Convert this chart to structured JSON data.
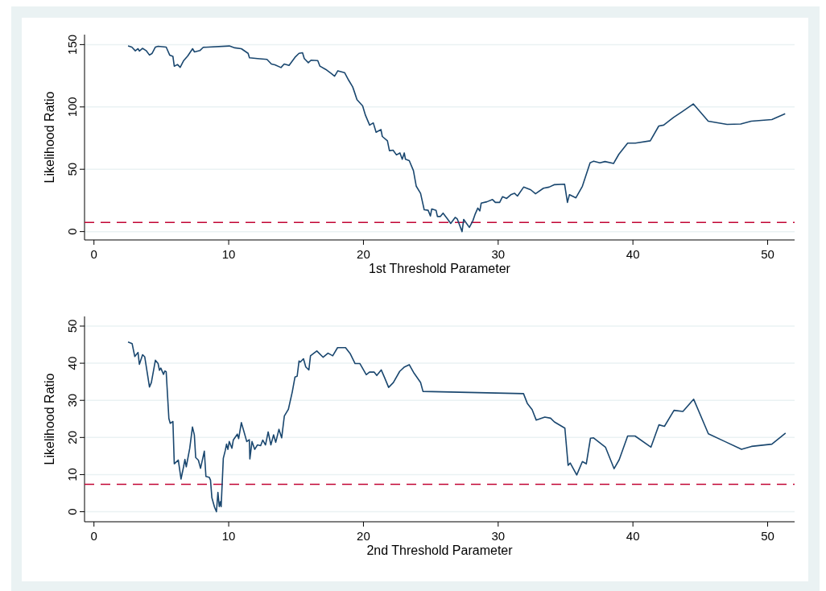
{
  "chart_data": [
    {
      "type": "line",
      "xlabel": "1st Threshold Parameter",
      "ylabel": "Likelihood Ratio",
      "xlim": [
        -0.7,
        52
      ],
      "ylim": [
        -6.7,
        158
      ],
      "xticks": [
        0,
        10,
        20,
        30,
        40,
        50
      ],
      "yticks": [
        0,
        50,
        100,
        150
      ],
      "grid": "y",
      "series": [
        {
          "color": "#1a476f",
          "x": [
            2.53,
            2.81,
            3.07,
            3.27,
            3.37,
            3.6,
            3.87,
            4.12,
            4.32,
            4.56,
            4.76,
            5.36,
            5.62,
            5.86,
            5.96,
            6.2,
            6.4,
            6.66,
            6.96,
            7.32,
            7.46,
            7.86,
            8.11,
            10.05,
            10.45,
            10.94,
            11.44,
            11.54,
            12.14,
            12.84,
            13.17,
            13.43,
            13.88,
            14.12,
            14.48,
            14.92,
            15.22,
            15.48,
            15.61,
            15.91,
            16.11,
            16.61,
            16.77,
            17.2,
            17.6,
            17.86,
            18.1,
            18.6,
            18.9,
            19.2,
            19.31,
            19.52,
            19.94,
            20.15,
            20.46,
            20.73,
            20.94,
            21.3,
            21.4,
            21.78,
            21.93,
            22.2,
            22.45,
            22.71,
            22.88,
            23.03,
            23.12,
            23.4,
            23.71,
            23.92,
            24.24,
            24.51,
            24.8,
            24.97,
            25.07,
            25.39,
            25.49,
            25.7,
            25.91,
            26.23,
            26.48,
            26.81,
            26.96,
            27.32,
            27.44,
            27.86,
            28.11,
            28.28,
            28.49,
            28.64,
            28.74,
            29.16,
            29.58,
            29.79,
            30.11,
            30.32,
            30.63,
            30.94,
            31.22,
            31.43,
            31.89,
            32.42,
            32.77,
            33.36,
            33.78,
            34.15,
            34.93,
            35.14,
            35.29,
            35.77,
            36.25,
            36.82,
            37.09,
            37.55,
            37.93,
            38.56,
            38.96,
            39.61,
            40.18,
            41.29,
            41.92,
            42.28,
            43.01,
            43.64,
            44.48,
            45.59,
            46.99,
            48,
            48.78,
            50.31,
            51.3
          ],
          "values": [
            149,
            148,
            145,
            146.7,
            144.8,
            147,
            145.2,
            141.6,
            143,
            148,
            148.6,
            148,
            141.6,
            140.5,
            132.7,
            134,
            131.8,
            137.2,
            140.9,
            146.7,
            144.1,
            145.2,
            147.8,
            148.9,
            147.4,
            146.7,
            143,
            139.4,
            138.8,
            138.1,
            134.4,
            133.8,
            131.6,
            134.4,
            133.3,
            139.8,
            143,
            143.5,
            138.8,
            135.5,
            137.5,
            137.2,
            132.7,
            130.1,
            126.9,
            124.7,
            129,
            127.5,
            121.5,
            116.1,
            112.7,
            105.9,
            100.8,
            93.3,
            85.4,
            87.2,
            79.7,
            81.9,
            76.3,
            72.8,
            64.9,
            65.3,
            61.5,
            63.1,
            58,
            63.1,
            58,
            56.9,
            48.9,
            36.4,
            30.7,
            17.5,
            17.1,
            12.5,
            18.2,
            17.1,
            12.1,
            12.1,
            14.8,
            10.2,
            6.6,
            11.4,
            10.2,
            0,
            9.8,
            3.4,
            8.4,
            13.7,
            18.9,
            16.6,
            22.8,
            23.9,
            25.7,
            23.4,
            23.4,
            28,
            26.6,
            29.6,
            30.7,
            28.5,
            35.7,
            33.5,
            30.3,
            34.8,
            35.7,
            37.6,
            38,
            23.4,
            29.6,
            27.1,
            36.4,
            55.1,
            56.5,
            55.1,
            56.2,
            54.6,
            62.1,
            71,
            71,
            72.8,
            84.7,
            85.4,
            91.5,
            96.1,
            102.4,
            88.6,
            86,
            86.3,
            88.6,
            89.9,
            94.5
          ]
        }
      ],
      "ref_lines": [
        {
          "axis": "y",
          "value": 7.4,
          "color": "#c10534",
          "line_style": "dashed"
        }
      ]
    },
    {
      "type": "line",
      "xlabel": "2nd Threshold Parameter",
      "ylabel": "Likelihood Ratio",
      "xlim": [
        -0.7,
        52
      ],
      "ylim": [
        -2.7,
        52.6
      ],
      "xticks": [
        0,
        10,
        20,
        30,
        40,
        50
      ],
      "yticks": [
        0,
        10,
        20,
        30,
        40,
        50
      ],
      "grid": "y",
      "series": [
        {
          "color": "#1a476f",
          "x": [
            2.53,
            2.83,
            3.03,
            3.27,
            3.37,
            3.61,
            3.77,
            4.12,
            4.26,
            4.56,
            4.76,
            4.86,
            4.96,
            5.16,
            5.26,
            5.36,
            5.56,
            5.66,
            5.86,
            5.96,
            6.26,
            6.46,
            6.65,
            6.75,
            6.85,
            7.11,
            7.31,
            7.45,
            7.55,
            7.75,
            7.91,
            8.19,
            8.31,
            8.55,
            8.65,
            8.75,
            8.95,
            9.09,
            9.2,
            9.3,
            9.38,
            9.44,
            9.5,
            9.6,
            9.74,
            9.84,
            9.94,
            10.04,
            10.24,
            10.34,
            10.64,
            10.74,
            10.94,
            11.14,
            11.34,
            11.53,
            11.57,
            11.73,
            11.93,
            12.13,
            12.37,
            12.53,
            12.73,
            12.93,
            13.13,
            13.33,
            13.49,
            13.73,
            13.93,
            14.13,
            14.43,
            14.72,
            14.92,
            15.08,
            15.22,
            15.31,
            15.55,
            15.72,
            15.95,
            16.07,
            16.54,
            17.01,
            17.37,
            17.72,
            18.08,
            18.67,
            19.03,
            19.38,
            19.74,
            20.21,
            20.45,
            20.8,
            20.99,
            21.32,
            21.56,
            21.87,
            22.22,
            22.69,
            23.05,
            23.4,
            23.76,
            24.24,
            24.42,
            31.88,
            32.16,
            32.52,
            32.82,
            33.46,
            33.89,
            34.17,
            34.95,
            35.19,
            35.35,
            35.83,
            36.25,
            36.54,
            36.85,
            37.08,
            37.96,
            38.6,
            38.98,
            39.61,
            40.16,
            41.34,
            41.93,
            42.34,
            43.05,
            43.71,
            44.51,
            45.6,
            46.83,
            48.06,
            48.8,
            50.31,
            51.33
          ],
          "values": [
            45.7,
            45.3,
            41.8,
            42.9,
            39.7,
            42.3,
            41.7,
            33.6,
            34.8,
            40.8,
            39.9,
            38.1,
            38.7,
            37,
            37.9,
            37.7,
            25.1,
            23.8,
            24.3,
            12.9,
            13.9,
            8.8,
            12.1,
            14.1,
            12.1,
            17.1,
            22.8,
            20.7,
            14.6,
            13.9,
            11.7,
            16.3,
            9.5,
            9.3,
            8.5,
            3.8,
            1.2,
            0,
            5.2,
            1.4,
            2.7,
            1.4,
            6.3,
            14.4,
            16.4,
            18.2,
            16.8,
            18.9,
            17.1,
            19.3,
            20.9,
            19.7,
            24,
            21.5,
            18.9,
            19.4,
            14.2,
            18.9,
            16.8,
            18,
            17.8,
            19.3,
            18,
            21.5,
            18,
            20.7,
            18.7,
            22.2,
            19.9,
            25.8,
            27.6,
            32.3,
            36.3,
            36.5,
            40.6,
            40.3,
            41.2,
            39,
            38.2,
            42,
            43.3,
            41.6,
            42.7,
            42,
            44.2,
            44.2,
            42.5,
            39.9,
            39.9,
            36.9,
            37.6,
            37.6,
            36.7,
            38.2,
            36.2,
            33.5,
            34.8,
            37.8,
            39,
            39.6,
            37.3,
            34.8,
            32.4,
            31.8,
            29.2,
            27.5,
            24.7,
            25.5,
            25.2,
            24.2,
            22.5,
            12.5,
            13.1,
            9.9,
            13.5,
            12.9,
            19.8,
            19.9,
            17.4,
            11.6,
            14,
            20.4,
            20.4,
            17.4,
            23.4,
            23,
            27.3,
            27,
            30.3,
            21,
            18.9,
            16.8,
            17.6,
            18.2,
            21.2
          ]
        }
      ],
      "ref_lines": [
        {
          "axis": "y",
          "value": 7.4,
          "color": "#c10534",
          "line_style": "dashed"
        }
      ]
    }
  ]
}
